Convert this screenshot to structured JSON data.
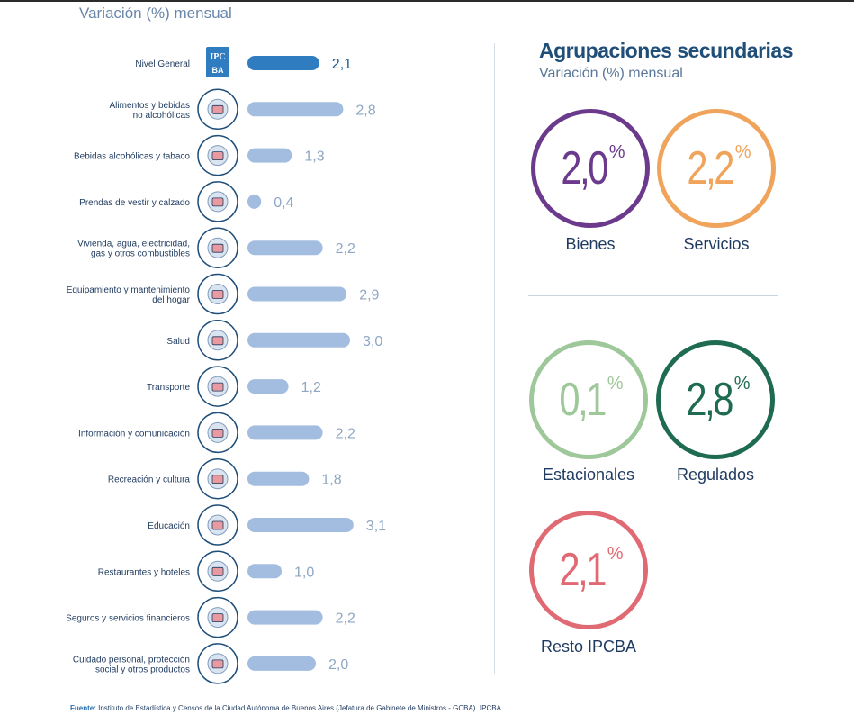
{
  "left_subtitle": "Variación (%) mensual",
  "chart_data": {
    "type": "bar",
    "orientation": "horizontal",
    "categories": [
      [
        "Nivel General"
      ],
      [
        "Alimentos y bebidas",
        "no alcohólicas"
      ],
      [
        "Bebidas alcohólicas y tabaco"
      ],
      [
        "Prendas de vestir y calzado"
      ],
      [
        "Vivienda, agua, electricidad,",
        "gas y otros combustibles"
      ],
      [
        "Equipamiento y mantenimiento",
        "del hogar"
      ],
      [
        "Salud"
      ],
      [
        "Transporte"
      ],
      [
        "Información y comunicación"
      ],
      [
        "Recreación y cultura"
      ],
      [
        "Educación"
      ],
      [
        "Restaurantes y hoteles"
      ],
      [
        "Seguros y servicios financieros"
      ],
      [
        "Cuidado personal, protección",
        "social y otros productos"
      ]
    ],
    "values": [
      2.1,
      2.8,
      1.3,
      0.4,
      2.2,
      2.9,
      3.0,
      1.2,
      2.2,
      1.8,
      3.1,
      1.0,
      2.2,
      2.0
    ],
    "value_labels": [
      "2,1",
      "2,8",
      "1,3",
      "0,4",
      "2,2",
      "2,9",
      "3,0",
      "1,2",
      "2,2",
      "1,8",
      "3,1",
      "1,0",
      "2,2",
      "2,0"
    ],
    "highlight_index": 0,
    "icons": [
      "ipc-ba-logo-icon",
      "grocery-icon",
      "wine-bottle-icon",
      "clothing-icon",
      "house-icon",
      "washing-machine-icon",
      "doctor-icon",
      "plane-car-icon",
      "computer-icon",
      "theater-masks-icon",
      "school-building-icon",
      "service-bell-icon",
      "bank-icon",
      "personal-care-icon"
    ],
    "colors": {
      "highlight": "#2f7cc1",
      "bar": "#a3bde0",
      "icon_ring": "#1f4e79"
    }
  },
  "secondary": {
    "title": "Agrupaciones secundarias",
    "subtitle": "Variación (%) mensual",
    "items": [
      {
        "label": "Bienes",
        "value": "2,0",
        "unit": "%",
        "color": "#6b3a8c"
      },
      {
        "label": "Servicios",
        "value": "2,2",
        "unit": "%",
        "color": "#f0a35a"
      },
      {
        "label": "Estacionales",
        "value": "0,1",
        "unit": "%",
        "color": "#9ec79a"
      },
      {
        "label": "Regulados",
        "value": "2,8",
        "unit": "%",
        "color": "#1f6b52"
      },
      {
        "label": "Resto IPCBA",
        "value": "2,1",
        "unit": "%",
        "color": "#e06a74"
      }
    ]
  },
  "footer": {
    "label": "Fuente:",
    "text": " Instituto de Estadística y Censos de la Ciudad Autónoma de Buenos Aires (Jefatura de Gabinete de Ministros - GCBA). IPCBA."
  }
}
